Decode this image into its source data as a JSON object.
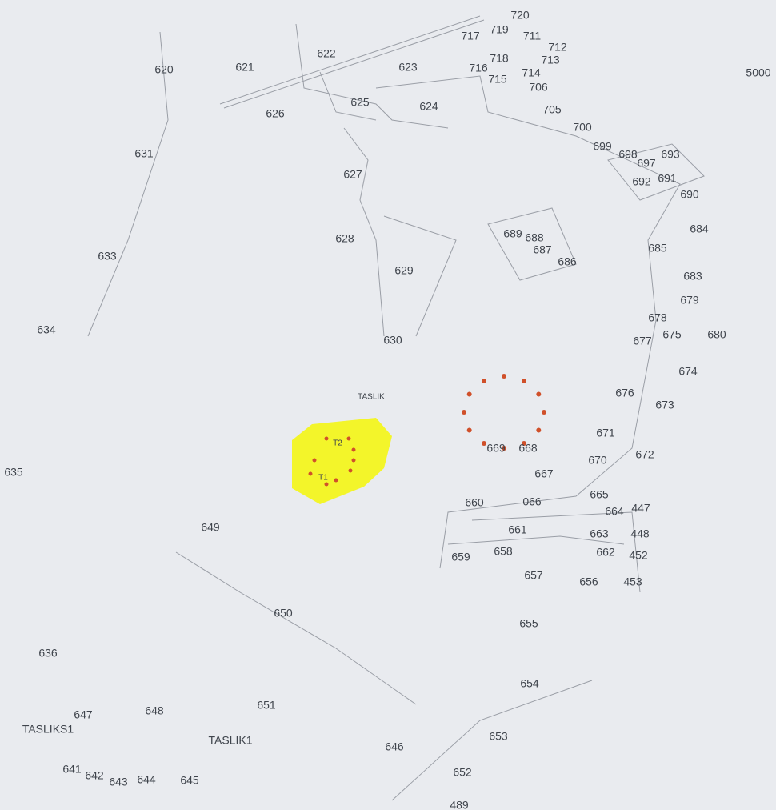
{
  "labels": [
    "720",
    "717",
    "719",
    "711",
    "712",
    "713",
    "718",
    "716",
    "715",
    "714",
    "706",
    "705",
    "700",
    "699",
    "698",
    "697",
    "693",
    "692",
    "691",
    "690",
    "684",
    "685",
    "683",
    "679",
    "678",
    "677",
    "675",
    "680",
    "674",
    "676",
    "673",
    "671",
    "672",
    "670",
    "669",
    "668",
    "667",
    "665",
    "664",
    "447",
    "663",
    "448",
    "662",
    "452",
    "656",
    "453",
    "660",
    "066",
    "661",
    "658",
    "659",
    "657",
    "655",
    "654",
    "653",
    "652",
    "489",
    "646",
    "651",
    "650",
    "649",
    "648",
    "647",
    "TASLIKS1",
    "TASLIK1",
    "641",
    "642",
    "643",
    "644",
    "645",
    "636",
    "635",
    "634",
    "633",
    "631",
    "620",
    "621",
    "622",
    "623",
    "624",
    "625",
    "626",
    "627",
    "628",
    "629",
    "630",
    "689",
    "688",
    "687",
    "686",
    "5000",
    "TASLIK",
    "T2",
    "T1"
  ]
}
